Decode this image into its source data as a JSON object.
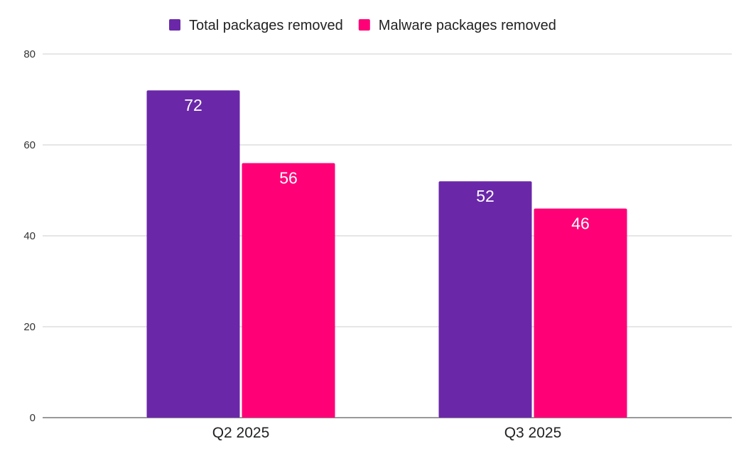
{
  "chart_data": {
    "type": "bar",
    "categories": [
      "Q2 2025",
      "Q3 2025"
    ],
    "series": [
      {
        "name": "Total packages removed",
        "values": [
          72,
          52
        ],
        "color": "#6a28a8"
      },
      {
        "name": "Malware packages removed",
        "values": [
          56,
          46
        ],
        "color": "#ff0077"
      }
    ],
    "ylim": [
      0,
      80
    ],
    "yticks": [
      0,
      20,
      40,
      60,
      80
    ],
    "grid": true,
    "legend": "top-center",
    "data_labels": true
  }
}
